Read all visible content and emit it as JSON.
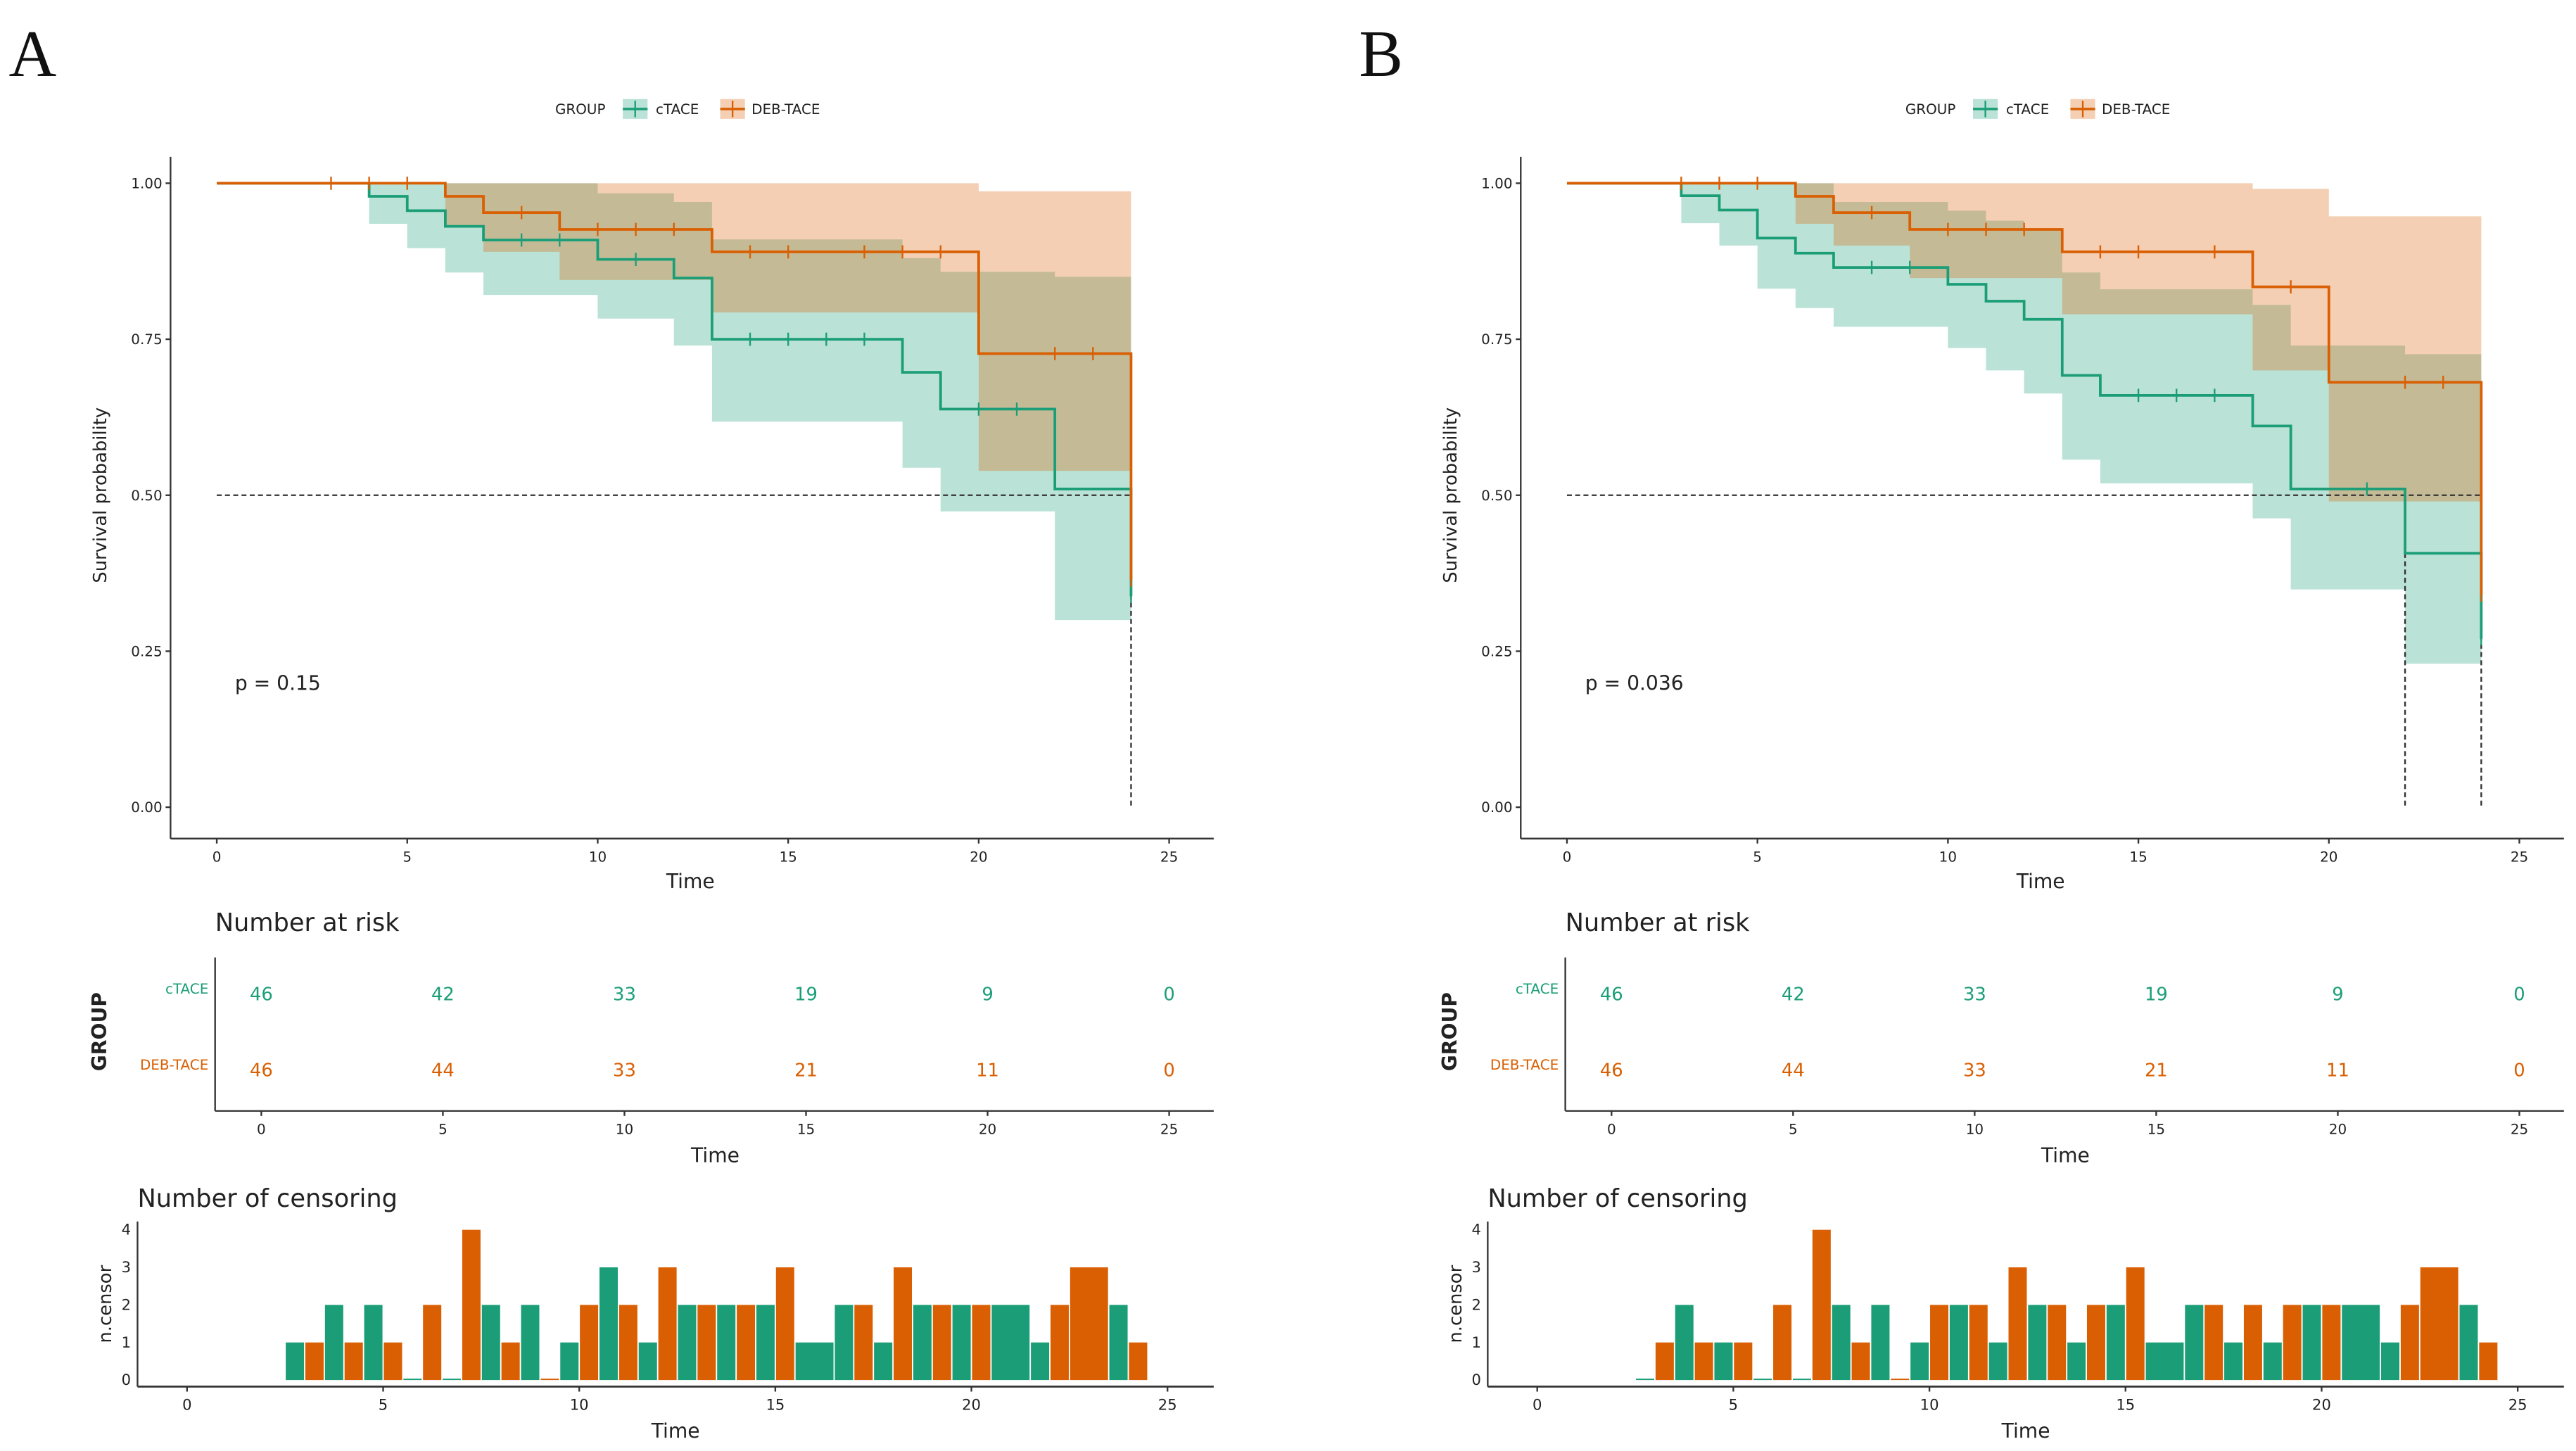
{
  "legend": {
    "title": "GROUP",
    "groups": [
      "cTACE",
      "DEB-TACE"
    ]
  },
  "colors": {
    "cTACE": "#1b9e77",
    "DEB-TACE": "#d95f02"
  },
  "chart_data": [
    {
      "panel_label": "A",
      "type": "line",
      "km": {
        "xlabel": "Time",
        "ylabel": "Survival probability",
        "xlim": [
          0,
          25
        ],
        "ylim": [
          0,
          1
        ],
        "x_ticks": [
          "0",
          "5",
          "10",
          "15",
          "20",
          "25"
        ],
        "y_ticks": [
          "0.00",
          "0.25",
          "0.50",
          "0.75",
          "1.00"
        ],
        "p_value": "p = 0.15",
        "median_line": 0.5,
        "median_times": [
          24
        ],
        "series": [
          {
            "name": "cTACE",
            "steps": [
              [
                0,
                1
              ],
              [
                4,
                0.979
              ],
              [
                5,
                0.956
              ],
              [
                6,
                0.931
              ],
              [
                7,
                0.909
              ],
              [
                10,
                0.878
              ],
              [
                12,
                0.848
              ],
              [
                13,
                0.75
              ],
              [
                18,
                0.697
              ],
              [
                19,
                0.638
              ],
              [
                22,
                0.51
              ],
              [
                24,
                0.338
              ]
            ],
            "ci": [
              [
                0,
                1,
                1
              ],
              [
                4,
                0.935,
                1
              ],
              [
                5,
                0.896,
                1
              ],
              [
                6,
                0.857,
                1
              ],
              [
                7,
                0.821,
                1
              ],
              [
                10,
                0.783,
                0.984
              ],
              [
                12,
                0.74,
                0.97
              ],
              [
                13,
                0.618,
                0.91
              ],
              [
                18,
                0.544,
                0.88
              ],
              [
                19,
                0.474,
                0.858
              ],
              [
                22,
                0.3,
                0.85
              ]
            ],
            "censor_times": [
              8,
              9,
              11,
              14,
              15,
              16,
              17,
              20,
              21,
              24
            ]
          },
          {
            "name": "DEB-TACE",
            "steps": [
              [
                0,
                1
              ],
              [
                6,
                0.979
              ],
              [
                7,
                0.953
              ],
              [
                9,
                0.926
              ],
              [
                13,
                0.89
              ],
              [
                20,
                0.727
              ],
              [
                24,
                0.364
              ]
            ],
            "ci": [
              [
                0,
                1,
                1
              ],
              [
                6,
                0.93,
                1
              ],
              [
                7,
                0.89,
                1
              ],
              [
                9,
                0.845,
                1
              ],
              [
                13,
                0.793,
                1
              ],
              [
                20,
                0.539,
                0.987
              ]
            ],
            "censor_times": [
              3,
              4,
              5,
              8,
              10,
              11,
              12,
              14,
              15,
              17,
              18,
              19,
              22,
              23,
              24
            ]
          }
        ],
        "end_time": 24
      },
      "risk_table": {
        "title": "Number at risk",
        "ylabel": "GROUP",
        "xlabel": "Time",
        "times": [
          0,
          5,
          10,
          15,
          20,
          25
        ],
        "x_ticks": [
          "0",
          "5",
          "10",
          "15",
          "20",
          "25"
        ],
        "rows": [
          {
            "group": "cTACE",
            "values": [
              "46",
              "42",
              "33",
              "19",
              "9",
              "0"
            ]
          },
          {
            "group": "DEB-TACE",
            "values": [
              "46",
              "44",
              "33",
              "21",
              "11",
              "0"
            ]
          }
        ]
      },
      "censoring": {
        "type": "bar",
        "title": "Number of censoring",
        "ylabel": "n.censor",
        "xlabel": "Time",
        "x_ticks": [
          "0",
          "5",
          "10",
          "15",
          "20",
          "25"
        ],
        "y_ticks": [
          "0",
          "1",
          "2",
          "3",
          "4"
        ],
        "ylim": [
          0,
          4
        ],
        "bars": [
          [
            3,
            1,
            1
          ],
          [
            4,
            2,
            1
          ],
          [
            5,
            2,
            1
          ],
          [
            6,
            0,
            2
          ],
          [
            7,
            0,
            4
          ],
          [
            8,
            2,
            1
          ],
          [
            9,
            2,
            0
          ],
          [
            10,
            1,
            2
          ],
          [
            11,
            3,
            2
          ],
          [
            12,
            1,
            3
          ],
          [
            13,
            2,
            2
          ],
          [
            14,
            2,
            2
          ],
          [
            15,
            2,
            3
          ],
          [
            16,
            1,
            null
          ],
          [
            17,
            2,
            2
          ],
          [
            18,
            1,
            3
          ],
          [
            19,
            2,
            2
          ],
          [
            20,
            2,
            2
          ],
          [
            21,
            2,
            null
          ],
          [
            22,
            1,
            2
          ],
          [
            23,
            null,
            3
          ],
          [
            24,
            2,
            1
          ]
        ],
        "bar_columns": [
          "time",
          "cTACE",
          "DEB-TACE"
        ]
      }
    },
    {
      "panel_label": "B",
      "type": "line",
      "km": {
        "xlabel": "Time",
        "ylabel": "Survival probability",
        "xlim": [
          0,
          25
        ],
        "ylim": [
          0,
          1
        ],
        "x_ticks": [
          "0",
          "5",
          "10",
          "15",
          "20",
          "25"
        ],
        "y_ticks": [
          "0.00",
          "0.25",
          "0.50",
          "0.75",
          "1.00"
        ],
        "p_value": "p = 0.036",
        "median_line": 0.5,
        "median_times": [
          22,
          24
        ],
        "series": [
          {
            "name": "cTACE",
            "steps": [
              [
                0,
                1
              ],
              [
                3,
                0.98
              ],
              [
                4,
                0.957
              ],
              [
                5,
                0.912
              ],
              [
                6,
                0.888
              ],
              [
                7,
                0.865
              ],
              [
                10,
                0.838
              ],
              [
                11,
                0.811
              ],
              [
                12,
                0.782
              ],
              [
                13,
                0.692
              ],
              [
                14,
                0.66
              ],
              [
                18,
                0.611
              ],
              [
                19,
                0.51
              ],
              [
                22,
                0.407
              ],
              [
                24,
                0.27
              ]
            ],
            "ci": [
              [
                0,
                1,
                1
              ],
              [
                3,
                0.936,
                1
              ],
              [
                4,
                0.9,
                1
              ],
              [
                5,
                0.831,
                1
              ],
              [
                6,
                0.8,
                1
              ],
              [
                7,
                0.77,
                0.97
              ],
              [
                10,
                0.736,
                0.956
              ],
              [
                11,
                0.7,
                0.94
              ],
              [
                12,
                0.663,
                0.925
              ],
              [
                13,
                0.557,
                0.857
              ],
              [
                14,
                0.519,
                0.83
              ],
              [
                18,
                0.463,
                0.805
              ],
              [
                19,
                0.349,
                0.74
              ],
              [
                22,
                0.23,
                0.726
              ]
            ],
            "censor_times": [
              8,
              9,
              15,
              16,
              17,
              21,
              24
            ]
          },
          {
            "name": "DEB-TACE",
            "steps": [
              [
                0,
                1
              ],
              [
                6,
                0.979
              ],
              [
                7,
                0.953
              ],
              [
                9,
                0.926
              ],
              [
                13,
                0.89
              ],
              [
                18,
                0.834
              ],
              [
                20,
                0.681
              ],
              [
                24,
                0.34
              ]
            ],
            "ci": [
              [
                0,
                1,
                1
              ],
              [
                6,
                0.935,
                1
              ],
              [
                7,
                0.9,
                1
              ],
              [
                9,
                0.848,
                1
              ],
              [
                13,
                0.79,
                1
              ],
              [
                18,
                0.7,
                0.991
              ],
              [
                20,
                0.49,
                0.947
              ]
            ],
            "censor_times": [
              3,
              4,
              5,
              8,
              10,
              11,
              12,
              14,
              15,
              17,
              19,
              22,
              23,
              24
            ]
          }
        ],
        "end_time": 24
      },
      "risk_table": {
        "title": "Number at risk",
        "ylabel": "GROUP",
        "xlabel": "Time",
        "times": [
          0,
          5,
          10,
          15,
          20,
          25
        ],
        "x_ticks": [
          "0",
          "5",
          "10",
          "15",
          "20",
          "25"
        ],
        "rows": [
          {
            "group": "cTACE",
            "values": [
              "46",
              "42",
              "33",
              "19",
              "9",
              "0"
            ]
          },
          {
            "group": "DEB-TACE",
            "values": [
              "46",
              "44",
              "33",
              "21",
              "11",
              "0"
            ]
          }
        ]
      },
      "censoring": {
        "type": "bar",
        "title": "Number of censoring",
        "ylabel": "n.censor",
        "xlabel": "Time",
        "x_ticks": [
          "0",
          "5",
          "10",
          "15",
          "20",
          "25"
        ],
        "y_ticks": [
          "0",
          "1",
          "2",
          "3",
          "4"
        ],
        "ylim": [
          0,
          4
        ],
        "bars": [
          [
            3,
            0,
            1
          ],
          [
            4,
            2,
            1
          ],
          [
            5,
            1,
            1
          ],
          [
            6,
            0,
            2
          ],
          [
            7,
            0,
            4
          ],
          [
            8,
            2,
            1
          ],
          [
            9,
            2,
            0
          ],
          [
            10,
            1,
            2
          ],
          [
            11,
            2,
            2
          ],
          [
            12,
            1,
            3
          ],
          [
            13,
            2,
            2
          ],
          [
            14,
            1,
            2
          ],
          [
            15,
            2,
            3
          ],
          [
            16,
            1,
            null
          ],
          [
            17,
            2,
            2
          ],
          [
            18,
            1,
            2
          ],
          [
            19,
            1,
            2
          ],
          [
            20,
            2,
            2
          ],
          [
            21,
            2,
            null
          ],
          [
            22,
            1,
            2
          ],
          [
            23,
            null,
            3
          ],
          [
            24,
            2,
            1
          ]
        ],
        "bar_columns": [
          "time",
          "cTACE",
          "DEB-TACE"
        ]
      }
    }
  ]
}
